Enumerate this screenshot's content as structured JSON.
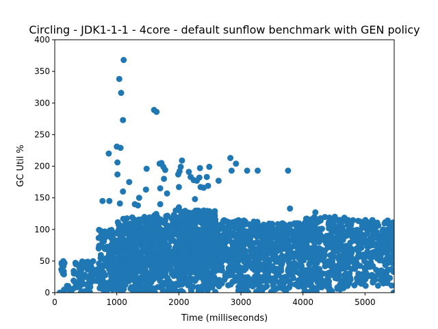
{
  "chart_data": {
    "type": "scatter",
    "title": "Circling - JDK1-1-1 - 4core -  default sunflow benchmark with GEN policy",
    "xlabel": "Time (milliseconds)",
    "ylabel": "GC Util %",
    "xlim": [
      0,
      5470
    ],
    "ylim": [
      0,
      400
    ],
    "xticks": [
      0,
      1000,
      2000,
      3000,
      4000,
      5000
    ],
    "yticks": [
      0,
      50,
      100,
      150,
      200,
      250,
      300,
      350,
      400
    ],
    "grid": false,
    "legend": "none",
    "marker_color": "#1f77b4",
    "outliers": [
      [
        1110,
        368
      ],
      [
        1040,
        338
      ],
      [
        1070,
        316
      ],
      [
        1600,
        289
      ],
      [
        1640,
        286
      ],
      [
        1100,
        273
      ],
      [
        1000,
        231
      ],
      [
        1060,
        229
      ],
      [
        870,
        220
      ],
      [
        2830,
        213
      ],
      [
        1010,
        206
      ],
      [
        2920,
        204
      ],
      [
        1720,
        205
      ],
      [
        1690,
        204
      ],
      [
        2050,
        209
      ],
      [
        1750,
        199
      ],
      [
        2030,
        199
      ],
      [
        2490,
        199
      ],
      [
        2340,
        197
      ],
      [
        1480,
        196
      ],
      [
        1780,
        194
      ],
      [
        3100,
        193
      ],
      [
        3270,
        193
      ],
      [
        3760,
        193
      ],
      [
        2850,
        193
      ],
      [
        2010,
        192
      ],
      [
        2160,
        191
      ],
      [
        1990,
        187
      ],
      [
        1010,
        187
      ],
      [
        2190,
        183
      ],
      [
        2330,
        182
      ],
      [
        2450,
        183
      ],
      [
        2240,
        178
      ],
      [
        2290,
        177
      ],
      [
        2640,
        177
      ],
      [
        1760,
        180
      ],
      [
        1200,
        175
      ],
      [
        1700,
        165
      ],
      [
        2000,
        167
      ],
      [
        2350,
        167
      ],
      [
        2400,
        166
      ],
      [
        2470,
        169
      ],
      [
        1470,
        163
      ],
      [
        1810,
        157
      ],
      [
        1100,
        160
      ],
      [
        1360,
        150
      ],
      [
        2260,
        148
      ],
      [
        770,
        145
      ],
      [
        880,
        145
      ],
      [
        1290,
        140
      ],
      [
        1340,
        138
      ],
      [
        1050,
        141
      ],
      [
        1950,
        130
      ],
      [
        2000,
        135
      ],
      [
        2100,
        128
      ],
      [
        1700,
        140
      ],
      [
        3790,
        133
      ],
      [
        4200,
        127
      ]
    ],
    "clusters": [
      {
        "x_from": 100,
        "x_to": 160,
        "y_from": 22,
        "y_to": 50,
        "count": 14
      },
      {
        "x_from": 120,
        "x_to": 300,
        "y_from": 0,
        "y_to": 12,
        "count": 10
      },
      {
        "x_from": 300,
        "x_to": 700,
        "y_from": 0,
        "y_to": 50,
        "count": 70
      },
      {
        "x_from": 700,
        "x_to": 1000,
        "y_from": 0,
        "y_to": 100,
        "count": 120
      },
      {
        "x_from": 1000,
        "x_to": 1500,
        "y_from": 0,
        "y_to": 120,
        "count": 260
      },
      {
        "x_from": 1500,
        "x_to": 2000,
        "y_from": 0,
        "y_to": 125,
        "count": 280
      },
      {
        "x_from": 2000,
        "x_to": 2600,
        "y_from": 0,
        "y_to": 130,
        "count": 420
      },
      {
        "x_from": 2600,
        "x_to": 3300,
        "y_from": 0,
        "y_to": 115,
        "count": 330
      },
      {
        "x_from": 3300,
        "x_to": 4000,
        "y_from": 0,
        "y_to": 110,
        "count": 330
      },
      {
        "x_from": 4000,
        "x_to": 4700,
        "y_from": 0,
        "y_to": 120,
        "count": 360
      },
      {
        "x_from": 4700,
        "x_to": 5470,
        "y_from": 10,
        "y_to": 115,
        "count": 300
      },
      {
        "x_from": 2000,
        "x_to": 2700,
        "y_from": 30,
        "y_to": 100,
        "count": 260
      },
      {
        "x_from": 1000,
        "x_to": 1800,
        "y_from": 20,
        "y_to": 80,
        "count": 160
      }
    ],
    "border_points": [
      [
        80,
        0
      ],
      [
        130,
        0
      ],
      [
        140,
        2
      ],
      [
        5460,
        0
      ],
      [
        5460,
        33
      ],
      [
        5460,
        75
      ],
      [
        5460,
        80
      ]
    ]
  }
}
